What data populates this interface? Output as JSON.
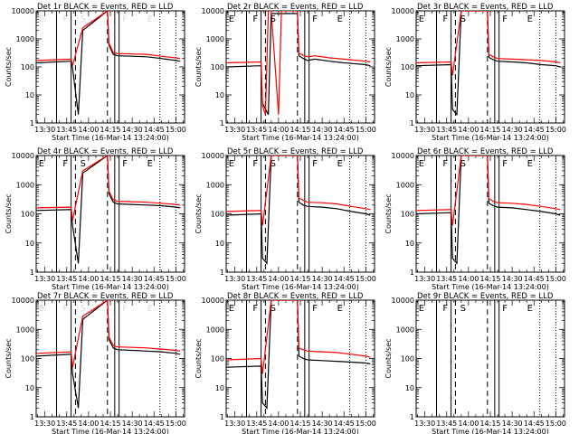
{
  "chart_data": {
    "type": "line",
    "y_scale": "log",
    "ylim": [
      1,
      10000
    ],
    "xlim": [
      "13:24",
      "15:06"
    ],
    "x_ticks": [
      "13:30",
      "13:45",
      "14:00",
      "14:15",
      "14:30",
      "14:45",
      "15:00"
    ],
    "y_ticks": [
      "1",
      "10",
      "100",
      "1000",
      "10000"
    ],
    "xlabel": "Start Time (16-Mar-14 13:24:00)",
    "ylabel": "Counts/sec",
    "colors": {
      "events": "#000000",
      "lld": "#ff0000"
    },
    "markers": {
      "solid": [
        "13:38",
        "13:48",
        "14:18",
        "14:21"
      ],
      "dashed": [
        "13:51",
        "14:13"
      ],
      "dotted": [
        "14:49",
        "15:00"
      ]
    },
    "region_labels": [
      {
        "time": "13:24.5",
        "text": "E"
      },
      {
        "time": "13:41",
        "text": "F"
      },
      {
        "time": "13:53",
        "text": "S"
      },
      {
        "time": "14:22",
        "text": "F"
      },
      {
        "time": "14:39",
        "text": "E"
      }
    ],
    "panels": [
      {
        "title": "Det 1r BLACK = Events, RED = LLD",
        "labels_visible": false,
        "series": [
          {
            "name": "Events",
            "x": [
              "13:24",
              "13:48",
              "13:49",
              "13:53",
              "13:56",
              "14:13",
              "14:14",
              "14:17",
              "14:20",
              "14:30",
              "14:40",
              "14:50",
              "15:00",
              "15:03"
            ],
            "y": [
              140,
              160,
              90,
              2,
              2000,
              10000,
              600,
              280,
              250,
              240,
              230,
              200,
              170,
              160
            ]
          },
          {
            "name": "LLD",
            "x": [
              "13:24",
              "13:48",
              "13:49",
              "13:56",
              "14:13",
              "14:14",
              "14:17",
              "14:20",
              "14:30",
              "14:40",
              "14:50",
              "15:00",
              "15:03"
            ],
            "y": [
              170,
              190,
              110,
              2500,
              10000,
              700,
              330,
              300,
              290,
              280,
              240,
              210,
              200
            ]
          }
        ]
      },
      {
        "title": "Det 2r BLACK = Events, RED = LLD",
        "labels_visible": true,
        "series": [
          {
            "name": "Events",
            "x": [
              "13:24",
              "13:48",
              "13:49",
              "13:53",
              "13:55",
              "14:13",
              "14:14",
              "14:17",
              "14:20",
              "14:25",
              "14:35",
              "14:45",
              "15:00",
              "15:03"
            ],
            "y": [
              100,
              110,
              5,
              2,
              8000,
              8000,
              250,
              200,
              170,
              190,
              160,
              140,
              120,
              110
            ]
          },
          {
            "name": "LLD",
            "x": [
              "13:24",
              "13:48",
              "13:49",
              "13:51",
              "13:53",
              "13:55",
              "14:00",
              "14:02",
              "14:04",
              "14:06",
              "14:08",
              "14:10",
              "14:13",
              "14:14",
              "14:17",
              "14:20",
              "14:25",
              "14:35",
              "14:45",
              "15:00",
              "15:03"
            ],
            "y": [
              140,
              150,
              4,
              2,
              10000,
              10000,
              2,
              10000,
              10000,
              10000,
              10000,
              10000,
              10000,
              300,
              260,
              230,
              250,
              210,
              190,
              160,
              150
            ]
          }
        ]
      },
      {
        "title": "Det 3r BLACK = Events, RED = LLD",
        "labels_visible": true,
        "series": [
          {
            "name": "Events",
            "x": [
              "13:24",
              "13:48",
              "13:49",
              "13:52",
              "13:55",
              "14:13",
              "14:14",
              "14:17",
              "14:20",
              "14:30",
              "14:40",
              "14:50",
              "15:00",
              "15:03"
            ],
            "y": [
              110,
              120,
              3,
              2,
              10000,
              10000,
              220,
              180,
              160,
              150,
              140,
              120,
              110,
              100
            ]
          },
          {
            "name": "LLD",
            "x": [
              "13:24",
              "13:48",
              "13:49",
              "13:55",
              "14:13",
              "14:14",
              "14:17",
              "14:20",
              "14:30",
              "14:40",
              "14:50",
              "15:00",
              "15:03"
            ],
            "y": [
              140,
              150,
              50,
              10000,
              10000,
              280,
              230,
              200,
              190,
              180,
              170,
              150,
              140
            ]
          }
        ]
      },
      {
        "title": "Det 4r BLACK = Events, RED = LLD",
        "labels_visible": true,
        "series": [
          {
            "name": "Events",
            "x": [
              "13:24",
              "13:48",
              "13:49",
              "13:53",
              "13:56",
              "14:13",
              "14:14",
              "14:17",
              "14:20",
              "14:30",
              "14:40",
              "14:50",
              "15:00",
              "15:03"
            ],
            "y": [
              130,
              140,
              40,
              2,
              2500,
              10000,
              500,
              250,
              220,
              210,
              200,
              190,
              170,
              160
            ]
          },
          {
            "name": "LLD",
            "x": [
              "13:24",
              "13:48",
              "13:49",
              "13:56",
              "14:13",
              "14:14",
              "14:17",
              "14:20",
              "14:30",
              "14:40",
              "14:50",
              "15:00",
              "15:03"
            ],
            "y": [
              160,
              170,
              60,
              3000,
              10000,
              600,
              300,
              270,
              260,
              250,
              230,
              210,
              200
            ]
          }
        ]
      },
      {
        "title": "Det 5r BLACK = Events, RED = LLD",
        "labels_visible": true,
        "series": [
          {
            "name": "Events",
            "x": [
              "13:24",
              "13:48",
              "13:49",
              "13:52",
              "13:55",
              "14:13",
              "14:14",
              "14:17",
              "14:20",
              "14:30",
              "14:40",
              "14:50",
              "15:00",
              "15:03"
            ],
            "y": [
              90,
              100,
              3,
              2,
              10000,
              10000,
              250,
              200,
              180,
              170,
              150,
              120,
              100,
              90
            ]
          },
          {
            "name": "LLD",
            "x": [
              "13:24",
              "13:48",
              "13:49",
              "13:55",
              "14:13",
              "14:14",
              "14:17",
              "14:20",
              "14:30",
              "14:40",
              "14:50",
              "15:00",
              "15:03"
            ],
            "y": [
              120,
              130,
              40,
              10000,
              10000,
              350,
              290,
              250,
              240,
              220,
              180,
              150,
              140
            ]
          }
        ]
      },
      {
        "title": "Det 6r BLACK = Events, RED = LLD",
        "labels_visible": true,
        "series": [
          {
            "name": "Events",
            "x": [
              "13:24",
              "13:48",
              "13:49",
              "13:52",
              "13:55",
              "14:13",
              "14:14",
              "14:17",
              "14:20",
              "14:30",
              "14:40",
              "14:50",
              "15:00",
              "15:03"
            ],
            "y": [
              100,
              110,
              3,
              2,
              10000,
              10000,
              230,
              190,
              170,
              160,
              140,
              120,
              100,
              90
            ]
          },
          {
            "name": "LLD",
            "x": [
              "13:24",
              "13:48",
              "13:49",
              "13:55",
              "14:13",
              "14:14",
              "14:17",
              "14:20",
              "14:30",
              "14:40",
              "14:50",
              "15:00",
              "15:03"
            ],
            "y": [
              130,
              140,
              40,
              10000,
              10000,
              330,
              270,
              240,
              230,
              210,
              180,
              150,
              140
            ]
          }
        ]
      },
      {
        "title": "Det 7r BLACK = Events, RED = LLD",
        "labels_visible": false,
        "series": [
          {
            "name": "Events",
            "x": [
              "13:24",
              "13:48",
              "13:49",
              "13:53",
              "13:56",
              "14:13",
              "14:14",
              "14:17",
              "14:20",
              "14:30",
              "14:40",
              "14:50",
              "15:00",
              "15:03"
            ],
            "y": [
              120,
              140,
              30,
              2,
              2200,
              10000,
              450,
              230,
              200,
              190,
              180,
              170,
              150,
              140
            ]
          },
          {
            "name": "LLD",
            "x": [
              "13:24",
              "13:48",
              "13:49",
              "13:56",
              "14:13",
              "14:14",
              "14:17",
              "14:20",
              "14:30",
              "14:40",
              "14:50",
              "15:00",
              "15:03"
            ],
            "y": [
              150,
              170,
              50,
              2800,
              10000,
              550,
              280,
              250,
              240,
              230,
              210,
              190,
              180
            ]
          }
        ]
      },
      {
        "title": "Det 8r BLACK = Events, RED = LLD",
        "labels_visible": true,
        "series": [
          {
            "name": "Events",
            "x": [
              "13:24",
              "13:48",
              "13:49",
              "13:52",
              "13:55",
              "14:13",
              "14:14",
              "14:17",
              "14:20",
              "14:30",
              "14:40",
              "14:50",
              "15:00",
              "15:03"
            ],
            "y": [
              50,
              55,
              3,
              2,
              10000,
              10000,
              120,
              100,
              90,
              85,
              80,
              75,
              70,
              65
            ]
          },
          {
            "name": "LLD",
            "x": [
              "13:24",
              "13:48",
              "13:49",
              "13:55",
              "14:13",
              "14:14",
              "14:17",
              "14:20",
              "14:30",
              "14:40",
              "14:50",
              "15:00",
              "15:03"
            ],
            "y": [
              90,
              100,
              30,
              10000,
              10000,
              230,
              200,
              180,
              170,
              160,
              140,
              120,
              110
            ]
          }
        ]
      },
      {
        "title": "Det 9r BLACK = Events, RED = LLD",
        "labels_visible": true,
        "series": []
      }
    ]
  }
}
